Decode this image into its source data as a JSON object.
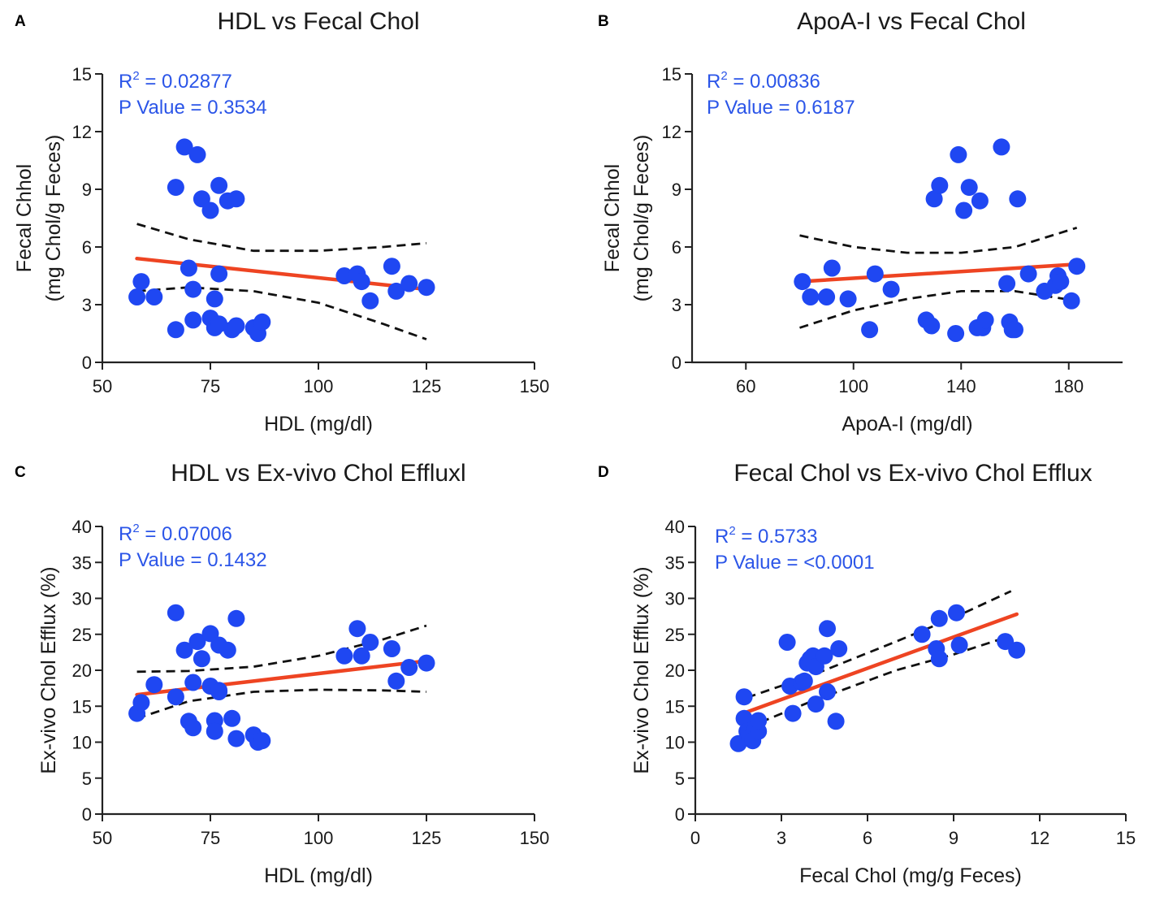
{
  "colors": {
    "point": "#1f47f2",
    "fit": "#ee4422",
    "ci": "#111111",
    "stat": "#2b55e8",
    "axis": "#222222"
  },
  "chart_data": [
    {
      "panel": "A",
      "type": "scatter",
      "title": "HDL vs Fecal Chol",
      "xlabel": "HDL (mg/dl)",
      "ylabel_line1": "Fecal Chhol",
      "ylabel_line2": "(mg Chol/g Feces)",
      "xlim": [
        50,
        150
      ],
      "ylim": [
        0,
        15
      ],
      "xticks": [
        50,
        75,
        100,
        125,
        150
      ],
      "yticks": [
        0,
        3,
        6,
        9,
        12,
        15
      ],
      "r2_label": "R",
      "r2_sup": "2",
      "r2_value": " = 0.02877",
      "p_text": "P Value = 0.3534",
      "x": [
        58,
        59,
        62,
        67,
        67,
        69,
        70,
        71,
        71,
        72,
        73,
        75,
        75,
        76,
        76,
        77,
        77,
        77,
        79,
        80,
        81,
        81,
        85,
        86,
        87,
        106,
        109,
        110,
        112,
        117,
        118,
        121,
        125
      ],
      "y": [
        3.4,
        4.2,
        3.4,
        1.7,
        9.1,
        11.2,
        4.9,
        3.8,
        2.2,
        10.8,
        8.5,
        7.9,
        2.3,
        1.8,
        3.3,
        4.6,
        9.2,
        2.0,
        8.4,
        1.7,
        8.5,
        1.9,
        1.8,
        1.5,
        2.1,
        4.5,
        4.6,
        4.2,
        3.2,
        5.0,
        3.7,
        4.1,
        3.9
      ],
      "fit": {
        "x": [
          58,
          125
        ],
        "y": [
          5.4,
          3.8
        ]
      },
      "ci_upper": {
        "x": [
          58,
          70,
          85,
          100,
          115,
          125
        ],
        "y": [
          7.2,
          6.4,
          5.8,
          5.8,
          6.0,
          6.2
        ]
      },
      "ci_lower": {
        "x": [
          58,
          70,
          85,
          100,
          115,
          125
        ],
        "y": [
          3.7,
          3.9,
          3.7,
          3.1,
          2.0,
          1.2
        ]
      }
    },
    {
      "panel": "B",
      "type": "scatter",
      "title": "ApoA-I vs Fecal Chol",
      "xlabel": "ApoA-I (mg/dl)",
      "ylabel_line1": "Fecal Chhol",
      "ylabel_line2": "(mg Chol/g Feces)",
      "xlim": [
        40,
        200
      ],
      "ylim": [
        0,
        15
      ],
      "xticks": [
        60,
        100,
        140,
        180
      ],
      "yticks": [
        0,
        3,
        6,
        9,
        12,
        15
      ],
      "r2_label": "R",
      "r2_sup": "2",
      "r2_value": " = 0.00836",
      "p_text": "P Value = 0.6187",
      "x": [
        81,
        84,
        90,
        92,
        98,
        106,
        108,
        114,
        127,
        129,
        130,
        132,
        138,
        139,
        141,
        143,
        146,
        147,
        148,
        149,
        155,
        157,
        158,
        159,
        160,
        161,
        165,
        171,
        175,
        176,
        177,
        181,
        183
      ],
      "y": [
        4.2,
        3.4,
        3.4,
        4.9,
        3.3,
        1.7,
        4.6,
        3.8,
        2.2,
        1.9,
        8.5,
        9.2,
        1.5,
        10.8,
        7.9,
        9.1,
        1.8,
        8.4,
        1.8,
        2.2,
        11.2,
        4.1,
        2.1,
        1.7,
        1.7,
        8.5,
        4.6,
        3.7,
        4.0,
        4.5,
        4.2,
        3.2,
        5.0
      ],
      "fit": {
        "x": [
          80,
          183
        ],
        "y": [
          4.2,
          5.1
        ]
      },
      "ci_upper": {
        "x": [
          80,
          100,
          120,
          140,
          160,
          183
        ],
        "y": [
          6.6,
          6.0,
          5.7,
          5.7,
          6.0,
          7.0
        ]
      },
      "ci_lower": {
        "x": [
          80,
          100,
          120,
          140,
          160,
          183
        ],
        "y": [
          1.8,
          2.7,
          3.3,
          3.7,
          3.7,
          3.2
        ]
      }
    },
    {
      "panel": "C",
      "type": "scatter",
      "title": "HDL vs Ex-vivo Chol Efflux",
      "title_suffix": "l",
      "xlabel": "HDL (mg/dl)",
      "ylabel_line1": "Ex-vivo Chol Efflux (%)",
      "ylabel_line2": "",
      "xlim": [
        50,
        150
      ],
      "ylim": [
        0,
        40
      ],
      "xticks": [
        50,
        75,
        100,
        125,
        150
      ],
      "yticks": [
        0,
        5,
        10,
        15,
        20,
        25,
        30,
        35,
        40
      ],
      "r2_label": "R",
      "r2_sup": "2",
      "r2_value": " = 0.07006",
      "p_text": "P Value = 0.1432",
      "x": [
        58,
        59,
        62,
        67,
        67,
        69,
        70,
        71,
        71,
        72,
        73,
        75,
        75,
        76,
        76,
        77,
        77,
        77,
        79,
        80,
        81,
        81,
        85,
        86,
        87,
        106,
        109,
        110,
        112,
        117,
        118,
        121,
        125
      ],
      "y": [
        14.0,
        15.5,
        18.0,
        28.0,
        16.3,
        22.8,
        12.9,
        18.3,
        12.0,
        24.0,
        21.6,
        25.1,
        17.8,
        13.0,
        11.5,
        17.2,
        23.5,
        17.0,
        22.8,
        13.3,
        27.2,
        10.5,
        11.0,
        10.0,
        10.2,
        22.0,
        25.8,
        22.0,
        23.9,
        23.0,
        18.5,
        20.4,
        21.0
      ],
      "fit": {
        "x": [
          58,
          125
        ],
        "y": [
          16.6,
          21.3
        ]
      },
      "ci_upper": {
        "x": [
          58,
          70,
          85,
          100,
          115,
          125
        ],
        "y": [
          19.8,
          19.9,
          20.5,
          22.0,
          24.3,
          26.2
        ]
      },
      "ci_lower": {
        "x": [
          58,
          70,
          85,
          100,
          115,
          125
        ],
        "y": [
          13.3,
          15.7,
          17.0,
          17.3,
          17.2,
          17.0
        ]
      }
    },
    {
      "panel": "D",
      "type": "scatter",
      "title": "Fecal Chol vs Ex-vivo Chol Efflux",
      "title_suffix": "",
      "xlabel": "Fecal Chol (mg/g Feces)",
      "ylabel_line1": "Ex-vivo Chol Efflux (%)",
      "ylabel_line2": "",
      "xlim": [
        0,
        15
      ],
      "ylim": [
        0,
        40
      ],
      "xticks": [
        0,
        3,
        6,
        9,
        12,
        15
      ],
      "yticks": [
        0,
        5,
        10,
        15,
        20,
        25,
        30,
        35,
        40
      ],
      "r2_label": "R",
      "r2_sup": "2",
      "r2_value": " = 0.5733",
      "p_text": "P Value = <0.0001",
      "x": [
        1.5,
        1.7,
        1.7,
        1.8,
        1.9,
        2.0,
        2.1,
        2.2,
        2.2,
        3.2,
        3.3,
        3.4,
        3.7,
        3.8,
        3.9,
        4.0,
        4.1,
        4.2,
        4.2,
        4.5,
        4.6,
        4.6,
        4.9,
        5.0,
        7.9,
        8.4,
        8.5,
        8.5,
        9.1,
        9.2,
        10.8,
        11.2
      ],
      "y": [
        9.8,
        16.3,
        13.3,
        11.5,
        10.6,
        10.2,
        12.0,
        11.5,
        13.0,
        23.9,
        17.8,
        14.0,
        18.3,
        18.5,
        21.0,
        21.6,
        22.0,
        20.5,
        15.3,
        22.0,
        25.8,
        17.0,
        12.9,
        23.0,
        25.0,
        23.0,
        27.2,
        21.6,
        28.0,
        23.5,
        24.0,
        22.8
      ],
      "fit": {
        "x": [
          1.8,
          11.2
        ],
        "y": [
          14.2,
          27.8
        ]
      },
      "ci_upper": {
        "x": [
          1.8,
          4,
          7,
          9,
          11
        ],
        "y": [
          16.2,
          19.2,
          24.0,
          27.3,
          31.0
        ]
      },
      "ci_lower": {
        "x": [
          1.8,
          4,
          7,
          9,
          11
        ],
        "y": [
          12.0,
          15.6,
          20.0,
          22.2,
          24.8
        ]
      }
    }
  ]
}
